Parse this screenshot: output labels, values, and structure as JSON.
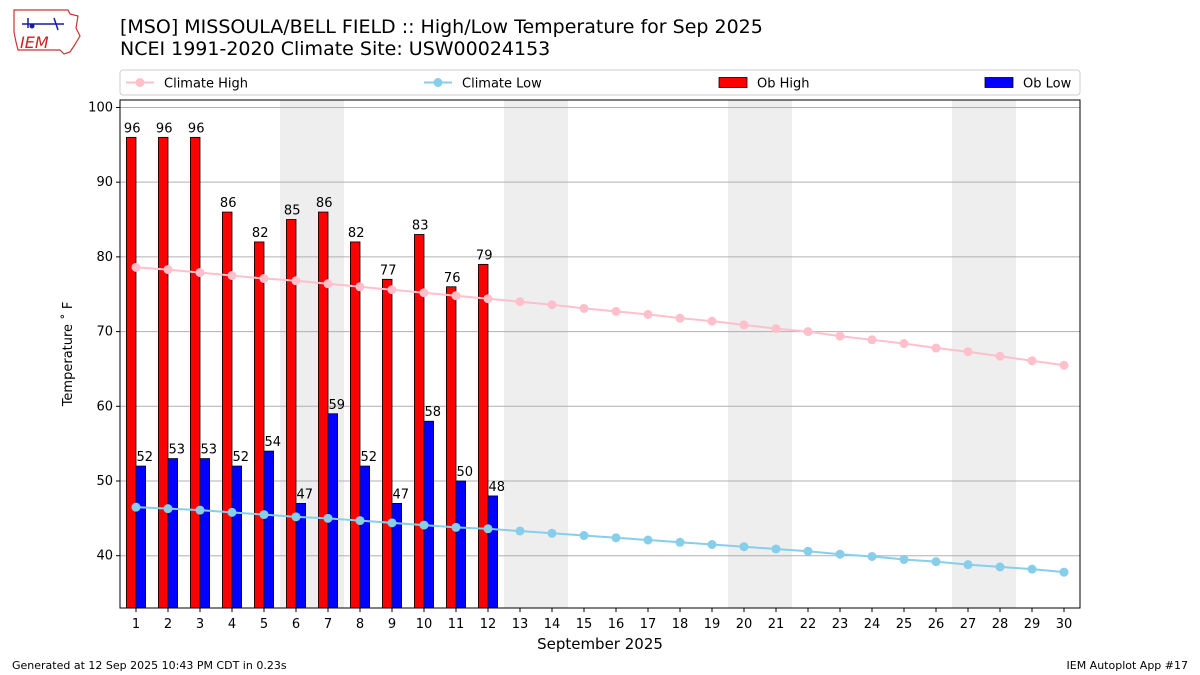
{
  "header": {
    "title_line1": "[MSO] MISSOULA/BELL FIELD :: High/Low Temperature for Sep 2025",
    "title_line2": "NCEI 1991-2020 Climate Site: USW00024153",
    "logo_text": "IEM"
  },
  "footer": {
    "generated": "Generated at 12 Sep 2025 10:43 PM CDT in 0.23s",
    "app": "IEM Autoplot App #17"
  },
  "chart_data": {
    "type": "bar",
    "title": "[MSO] MISSOULA/BELL FIELD :: High/Low Temperature for Sep 2025",
    "subtitle": "NCEI 1991-2020 Climate Site: USW00024153",
    "xlabel": "September 2025",
    "ylabel": "Temperature ˚ F",
    "ylim": [
      33,
      101
    ],
    "yticks": [
      40,
      50,
      60,
      70,
      80,
      90,
      100
    ],
    "days": [
      1,
      2,
      3,
      4,
      5,
      6,
      7,
      8,
      9,
      10,
      11,
      12,
      13,
      14,
      15,
      16,
      17,
      18,
      19,
      20,
      21,
      22,
      23,
      24,
      25,
      26,
      27,
      28,
      29,
      30
    ],
    "weekend_days": [
      6,
      7,
      13,
      14,
      20,
      21,
      27,
      28
    ],
    "grid": "horizontal",
    "legend_position": "top",
    "series": [
      {
        "name": "Ob High",
        "kind": "bar",
        "color": "#ff0000",
        "values": [
          96,
          96,
          96,
          86,
          82,
          85,
          86,
          82,
          77,
          83,
          76,
          79
        ]
      },
      {
        "name": "Ob Low",
        "kind": "bar",
        "color": "#0000ff",
        "values": [
          52,
          53,
          53,
          52,
          54,
          47,
          59,
          52,
          47,
          58,
          50,
          48
        ]
      },
      {
        "name": "Climate High",
        "kind": "line",
        "color": "#ffc0cb",
        "values": [
          78.6,
          78.3,
          77.9,
          77.5,
          77.1,
          76.8,
          76.4,
          76.0,
          75.6,
          75.2,
          74.8,
          74.4,
          74.0,
          73.6,
          73.1,
          72.7,
          72.3,
          71.8,
          71.4,
          70.9,
          70.4,
          70.0,
          69.4,
          68.9,
          68.4,
          67.8,
          67.3,
          66.7,
          66.1,
          65.5
        ]
      },
      {
        "name": "Climate Low",
        "kind": "line",
        "color": "#87ceeb",
        "values": [
          46.5,
          46.3,
          46.1,
          45.8,
          45.5,
          45.2,
          45.0,
          44.7,
          44.4,
          44.1,
          43.8,
          43.6,
          43.3,
          43.0,
          42.7,
          42.4,
          42.1,
          41.8,
          41.5,
          41.2,
          40.9,
          40.6,
          40.2,
          39.9,
          39.5,
          39.2,
          38.8,
          38.5,
          38.2,
          37.8
        ]
      }
    ]
  }
}
